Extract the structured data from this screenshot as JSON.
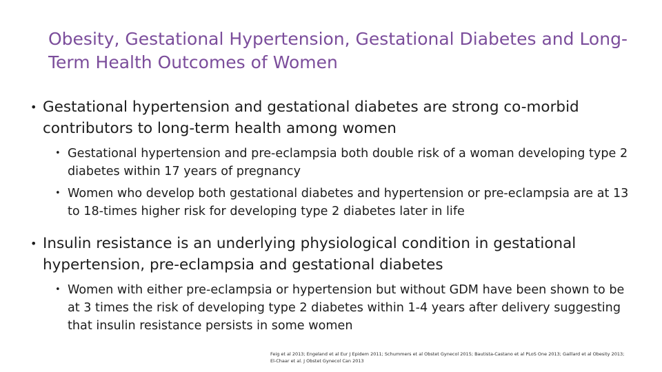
{
  "slide": {
    "title": "Obesity, Gestational Hypertension, Gestational Diabetes and Long-Term Health Outcomes of Women",
    "accent_color": "#7b4d9b",
    "bullet_glyph": "•",
    "bullets": [
      {
        "text": "Gestational hypertension and gestational diabetes are strong co-morbid contributors to long-term health among women",
        "sub": [
          "Gestational hypertension and pre-eclampsia both double risk of a woman developing type 2 diabetes within 17 years of pregnancy",
          "Women who develop both gestational diabetes and hypertension or pre-eclampsia are at 13 to 18-times higher risk for developing type 2 diabetes later in life"
        ]
      },
      {
        "text": "Insulin resistance is an underlying physiological condition in gestational hypertension, pre-eclampsia and gestational diabetes",
        "sub": [
          "Women with either pre-eclampsia or hypertension but without GDM have been shown to be at 3 times the risk of developing type 2 diabetes within 1-4 years after delivery suggesting that insulin resistance persists in some women"
        ]
      }
    ],
    "references": "Feig et al 2013; Engeland et al Eur J Epidem 2011; Schummers et al Obstet Gynecol 2015; Bautista-Castano et al PLoS One 2013; Gaillard et al Obesity 2013; El-Chaar et al. J Obstet Gynecol Can 2013"
  }
}
